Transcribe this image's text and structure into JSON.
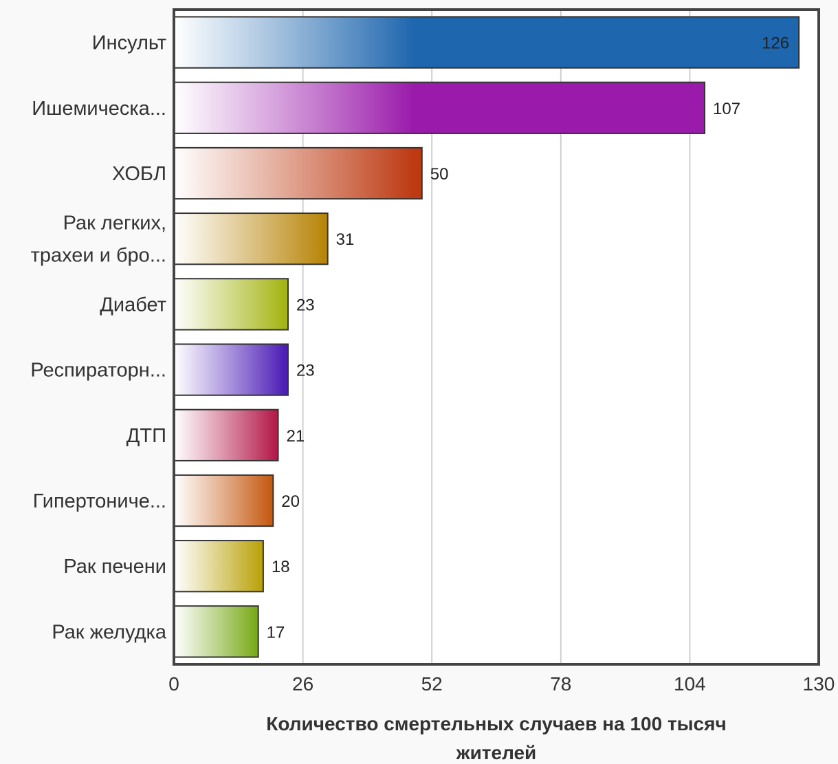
{
  "chart_data": {
    "type": "bar",
    "orientation": "horizontal",
    "categories": [
      [
        "Инсульт"
      ],
      [
        "Ишемическа..."
      ],
      [
        "ХОБЛ"
      ],
      [
        "Рак легких,",
        "трахеи и бро..."
      ],
      [
        "Диабет"
      ],
      [
        "Респираторн..."
      ],
      [
        "ДТП"
      ],
      [
        "Гипертониче..."
      ],
      [
        "Рак печени"
      ],
      [
        "Рак желудка"
      ]
    ],
    "values": [
      126,
      107,
      50,
      31,
      23,
      23,
      21,
      20,
      18,
      17
    ],
    "value_labels": [
      "126",
      "107",
      "50",
      "31",
      "23",
      "23",
      "21",
      "20",
      "18",
      "17"
    ],
    "colors": [
      "#1e66ae",
      "#9a1aab",
      "#bd3a12",
      "#b8860b",
      "#a4b514",
      "#4d1fb7",
      "#b41c4c",
      "#c65b14",
      "#bba30c",
      "#7aab1a"
    ],
    "xlim": [
      0,
      130
    ],
    "xticks": [
      0,
      26,
      52,
      78,
      104,
      130
    ],
    "xtick_labels": [
      "0",
      "26",
      "52",
      "78",
      "104",
      "130"
    ],
    "xlabel_lines": [
      "Количество смертельных случаев на 100 тысяч",
      "жителей"
    ],
    "ylabel": "",
    "title": "",
    "grid": true,
    "legend": false
  }
}
